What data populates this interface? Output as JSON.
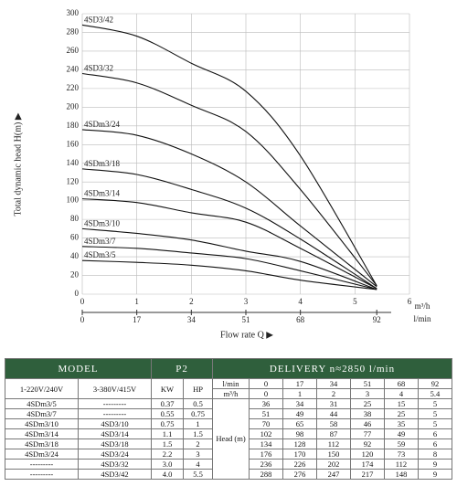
{
  "chart_data": {
    "type": "line",
    "y_label": "Total dynamic head H(m) ▶",
    "x_label": "Flow rate Q ▶",
    "x_unit": "m³/h",
    "x2_unit": "l/min",
    "x": [
      0,
      1,
      2,
      3,
      4,
      5.4
    ],
    "xlim": [
      0,
      6
    ],
    "xticks": [
      0,
      1,
      2,
      3,
      4,
      5,
      6
    ],
    "x2ticks": [
      {
        "value": 0,
        "label": "0"
      },
      {
        "value": 1,
        "label": "17"
      },
      {
        "value": 2,
        "label": "34"
      },
      {
        "value": 3,
        "label": "51"
      },
      {
        "value": 4,
        "label": "68"
      },
      {
        "value": 5.4,
        "label": "92"
      }
    ],
    "ylim": [
      0,
      300
    ],
    "yticks": [
      0,
      20,
      40,
      60,
      80,
      100,
      120,
      140,
      160,
      180,
      200,
      220,
      240,
      260,
      280,
      300
    ],
    "grid": true,
    "color": "#111111",
    "series": [
      {
        "name": "4SD3/42",
        "values": [
          288,
          276,
          247,
          217,
          148,
          9
        ]
      },
      {
        "name": "4SD3/32",
        "values": [
          236,
          226,
          202,
          174,
          112,
          9
        ]
      },
      {
        "name": "4SDm3/24",
        "values": [
          176,
          170,
          150,
          120,
          73,
          8
        ]
      },
      {
        "name": "4SDm3/18",
        "values": [
          134,
          128,
          112,
          92,
          59,
          6
        ]
      },
      {
        "name": "4SDm3/14",
        "values": [
          102,
          98,
          87,
          77,
          49,
          6
        ]
      },
      {
        "name": "4SDm3/10",
        "values": [
          70,
          65,
          58,
          46,
          35,
          5
        ]
      },
      {
        "name": "4SDm3/7",
        "values": [
          51,
          49,
          44,
          38,
          25,
          5
        ]
      },
      {
        "name": "4SDm3/5",
        "values": [
          36,
          34,
          31,
          25,
          15,
          5
        ]
      }
    ]
  },
  "table": {
    "header": {
      "model": "MODEL",
      "power": "P2",
      "delivery": "DELIVERY  n≈2850 l/min"
    },
    "subheader": [
      "1-220V/240V",
      "3-380V/415V",
      "KW",
      "HP"
    ],
    "flow_rows": [
      {
        "unit": "l/min",
        "values": [
          "0",
          "17",
          "34",
          "51",
          "68",
          "92"
        ]
      },
      {
        "unit": "m³/h",
        "values": [
          "0",
          "1",
          "2",
          "3",
          "4",
          "5.4"
        ]
      }
    ],
    "head_label": "Head (m)",
    "rows": [
      {
        "model_1ph": "4SDm3/5",
        "model_3ph": "---------",
        "kw": "0.37",
        "hp": "0.5",
        "head": [
          "36",
          "34",
          "31",
          "25",
          "15",
          "5"
        ]
      },
      {
        "model_1ph": "4SDm3/7",
        "model_3ph": "---------",
        "kw": "0.55",
        "hp": "0.75",
        "head": [
          "51",
          "49",
          "44",
          "38",
          "25",
          "5"
        ]
      },
      {
        "model_1ph": "4SDm3/10",
        "model_3ph": "4SD3/10",
        "kw": "0.75",
        "hp": "1",
        "head": [
          "70",
          "65",
          "58",
          "46",
          "35",
          "5"
        ]
      },
      {
        "model_1ph": "4SDm3/14",
        "model_3ph": "4SD3/14",
        "kw": "1.1",
        "hp": "1.5",
        "head": [
          "102",
          "98",
          "87",
          "77",
          "49",
          "6"
        ]
      },
      {
        "model_1ph": "4SDm3/18",
        "model_3ph": "4SD3/18",
        "kw": "1.5",
        "hp": "2",
        "head": [
          "134",
          "128",
          "112",
          "92",
          "59",
          "6"
        ]
      },
      {
        "model_1ph": "4SDm3/24",
        "model_3ph": "4SD3/24",
        "kw": "2.2",
        "hp": "3",
        "head": [
          "176",
          "170",
          "150",
          "120",
          "73",
          "8"
        ]
      },
      {
        "model_1ph": "---------",
        "model_3ph": "4SD3/32",
        "kw": "3.0",
        "hp": "4",
        "head": [
          "236",
          "226",
          "202",
          "174",
          "112",
          "9"
        ]
      },
      {
        "model_1ph": "---------",
        "model_3ph": "4SD3/42",
        "kw": "4.0",
        "hp": "5.5",
        "head": [
          "288",
          "276",
          "247",
          "217",
          "148",
          "9"
        ]
      }
    ]
  }
}
